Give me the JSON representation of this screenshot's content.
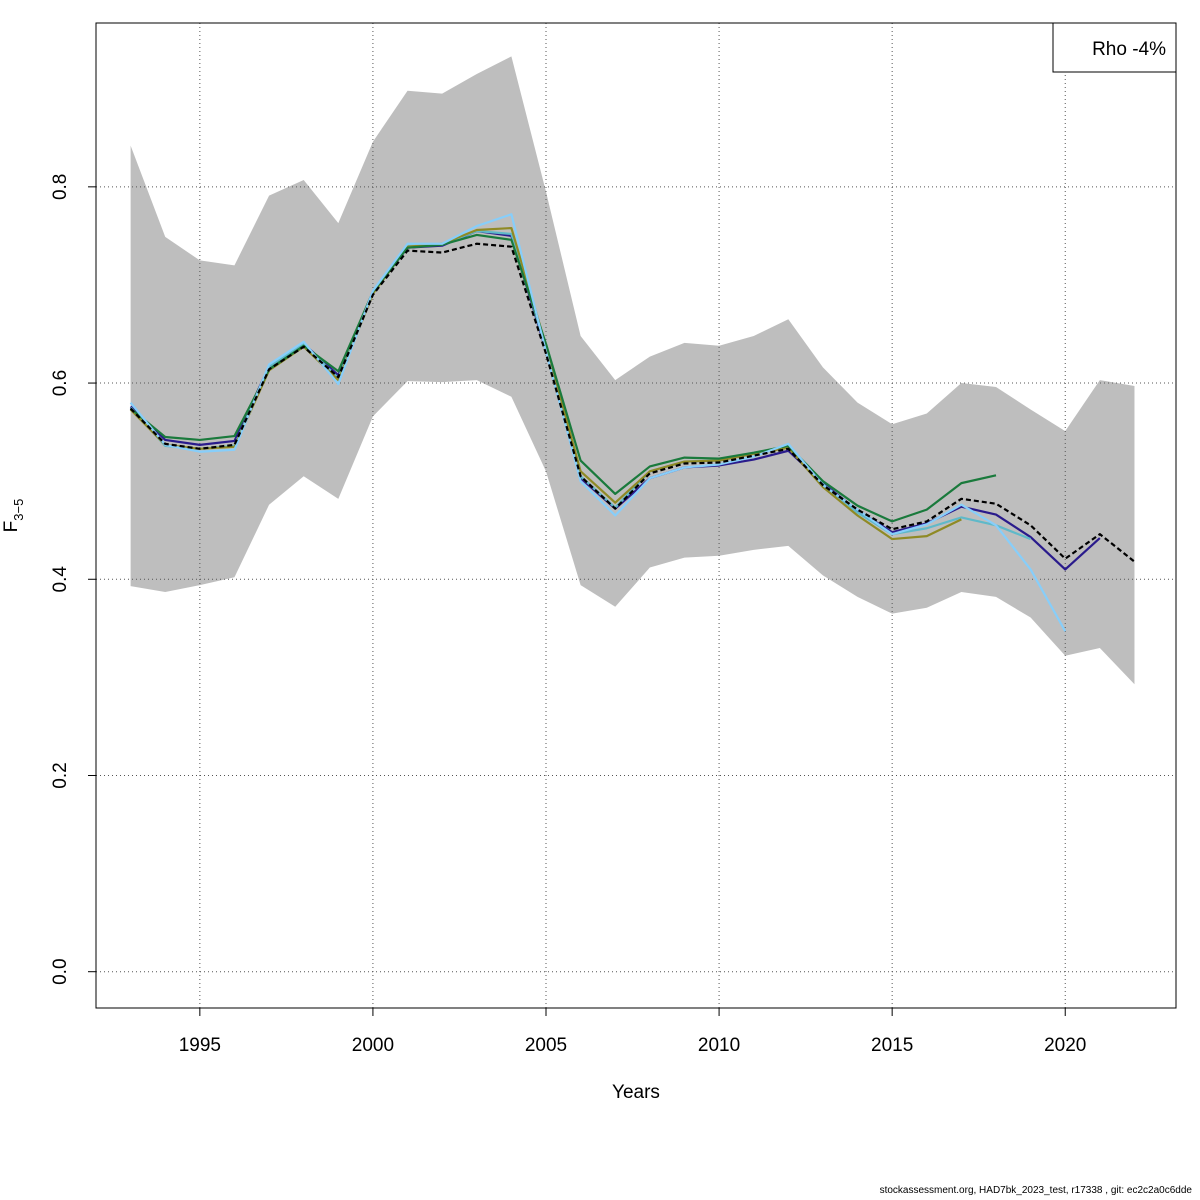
{
  "chart_data": {
    "type": "line",
    "xlabel": "Years",
    "ylabel_main": "F",
    "ylabel_sub": "3−5",
    "xlim": [
      1992,
      2023.2
    ],
    "ylim": [
      -0.037,
      0.967
    ],
    "x_ticks": [
      1995,
      2000,
      2005,
      2010,
      2015,
      2020
    ],
    "y_ticks": [
      0.0,
      0.2,
      0.4,
      0.6,
      0.8
    ],
    "y_tick_labels": [
      "0.0",
      "0.2",
      "0.4",
      "0.6",
      "0.8"
    ],
    "grid": true,
    "legend": {
      "text": "Rho -4%",
      "placement": "top-right"
    },
    "confidence_band": {
      "x": [
        1993,
        1994,
        1995,
        1996,
        1997,
        1998,
        1999,
        2000,
        2001,
        2002,
        2003,
        2004,
        2005,
        2006,
        2007,
        2008,
        2009,
        2010,
        2011,
        2012,
        2013,
        2014,
        2015,
        2016,
        2017,
        2018,
        2019,
        2020,
        2021,
        2022
      ],
      "lower": [
        0.393,
        0.387,
        0.394,
        0.402,
        0.476,
        0.505,
        0.482,
        0.566,
        0.602,
        0.601,
        0.603,
        0.586,
        0.51,
        0.394,
        0.372,
        0.412,
        0.422,
        0.424,
        0.43,
        0.434,
        0.404,
        0.382,
        0.365,
        0.371,
        0.387,
        0.382,
        0.361,
        0.322,
        0.33,
        0.293
      ],
      "upper": [
        0.842,
        0.749,
        0.725,
        0.72,
        0.791,
        0.807,
        0.763,
        0.846,
        0.898,
        0.895,
        0.915,
        0.933,
        0.795,
        0.648,
        0.603,
        0.627,
        0.641,
        0.638,
        0.648,
        0.665,
        0.616,
        0.58,
        0.558,
        0.569,
        0.6,
        0.596,
        0.573,
        0.551,
        0.603,
        0.597
      ],
      "color": "#bebebe"
    },
    "series": [
      {
        "color": "#2a1b8c",
        "dashed": false,
        "x": [
          1993,
          1994,
          1995,
          1996,
          1997,
          1998,
          1999,
          2000,
          2001,
          2002,
          2003,
          2004,
          2005,
          2006,
          2007,
          2008,
          2009,
          2010,
          2011,
          2012,
          2013,
          2014,
          2015,
          2016,
          2017,
          2018,
          2019,
          2020,
          2021
        ],
        "values": [
          0.576,
          0.542,
          0.537,
          0.541,
          0.617,
          0.64,
          0.608,
          0.693,
          0.738,
          0.74,
          0.755,
          0.75,
          0.633,
          0.503,
          0.472,
          0.503,
          0.514,
          0.516,
          0.522,
          0.531,
          0.498,
          0.47,
          0.448,
          0.457,
          0.474,
          0.466,
          0.443,
          0.41,
          0.442
        ]
      },
      {
        "color": "#5fb9c9",
        "dashed": false,
        "x": [
          1993,
          1994,
          1995,
          1996,
          1997,
          1998,
          1999,
          2000,
          2001,
          2002,
          2003,
          2004,
          2005,
          2006,
          2007,
          2008,
          2009,
          2010,
          2011,
          2012,
          2013,
          2014,
          2015,
          2016,
          2017,
          2018,
          2019
        ],
        "values": [
          0.575,
          0.536,
          0.533,
          0.536,
          0.617,
          0.64,
          0.605,
          0.692,
          0.74,
          0.741,
          0.755,
          0.752,
          0.635,
          0.505,
          0.473,
          0.51,
          0.52,
          0.521,
          0.528,
          0.536,
          0.497,
          0.468,
          0.446,
          0.452,
          0.463,
          0.455,
          0.441
        ]
      },
      {
        "color": "#8f8a25",
        "dashed": false,
        "x": [
          1993,
          1994,
          1995,
          1996,
          1997,
          1998,
          1999,
          2000,
          2001,
          2002,
          2003,
          2004,
          2005,
          2006,
          2007,
          2008,
          2009,
          2010,
          2011,
          2012,
          2013,
          2014,
          2015,
          2016,
          2017
        ],
        "values": [
          0.573,
          0.537,
          0.533,
          0.535,
          0.613,
          0.637,
          0.603,
          0.691,
          0.739,
          0.742,
          0.756,
          0.758,
          0.638,
          0.51,
          0.478,
          0.51,
          0.52,
          0.521,
          0.528,
          0.534,
          0.494,
          0.465,
          0.441,
          0.444,
          0.461
        ]
      },
      {
        "color": "#1a7a3c",
        "dashed": false,
        "x": [
          1993,
          1994,
          1995,
          1996,
          1997,
          1998,
          1999,
          2000,
          2001,
          2002,
          2003,
          2004,
          2005,
          2006,
          2007,
          2008,
          2009,
          2010,
          2011,
          2012,
          2013,
          2014,
          2015,
          2016,
          2017,
          2018
        ],
        "values": [
          0.574,
          0.545,
          0.542,
          0.546,
          0.614,
          0.638,
          0.612,
          0.693,
          0.738,
          0.741,
          0.751,
          0.746,
          0.64,
          0.521,
          0.487,
          0.515,
          0.524,
          0.523,
          0.529,
          0.536,
          0.5,
          0.475,
          0.459,
          0.471,
          0.498,
          0.506
        ]
      },
      {
        "color": "#87cefa",
        "dashed": false,
        "x": [
          1993,
          1994,
          1995,
          1996,
          1997,
          1998,
          1999,
          2000,
          2001,
          2002,
          2003,
          2004,
          2005,
          2006,
          2007,
          2008,
          2009,
          2010,
          2011,
          2012,
          2013,
          2014,
          2015,
          2016,
          2017,
          2018,
          2019,
          2020
        ],
        "values": [
          0.58,
          0.537,
          0.53,
          0.532,
          0.619,
          0.642,
          0.599,
          0.694,
          0.742,
          0.742,
          0.76,
          0.772,
          0.632,
          0.5,
          0.465,
          0.503,
          0.514,
          0.517,
          0.525,
          0.538,
          0.496,
          0.471,
          0.446,
          0.456,
          0.476,
          0.455,
          0.41,
          0.347
        ]
      },
      {
        "color": "#000000",
        "dashed": true,
        "x": [
          1993,
          1994,
          1995,
          1996,
          1997,
          1998,
          1999,
          2000,
          2001,
          2002,
          2003,
          2004,
          2005,
          2006,
          2007,
          2008,
          2009,
          2010,
          2011,
          2012,
          2013,
          2014,
          2015,
          2016,
          2017,
          2018,
          2019,
          2020,
          2021,
          2022
        ],
        "values": [
          0.574,
          0.538,
          0.533,
          0.537,
          0.614,
          0.637,
          0.606,
          0.69,
          0.735,
          0.733,
          0.742,
          0.739,
          0.63,
          0.505,
          0.472,
          0.508,
          0.518,
          0.519,
          0.526,
          0.533,
          0.496,
          0.471,
          0.451,
          0.459,
          0.482,
          0.477,
          0.455,
          0.421,
          0.446,
          0.418
        ]
      }
    ]
  },
  "footer": "stockassessment.org, HAD7bk_2023_test, r17338 , git: ec2c2a0c6dde"
}
